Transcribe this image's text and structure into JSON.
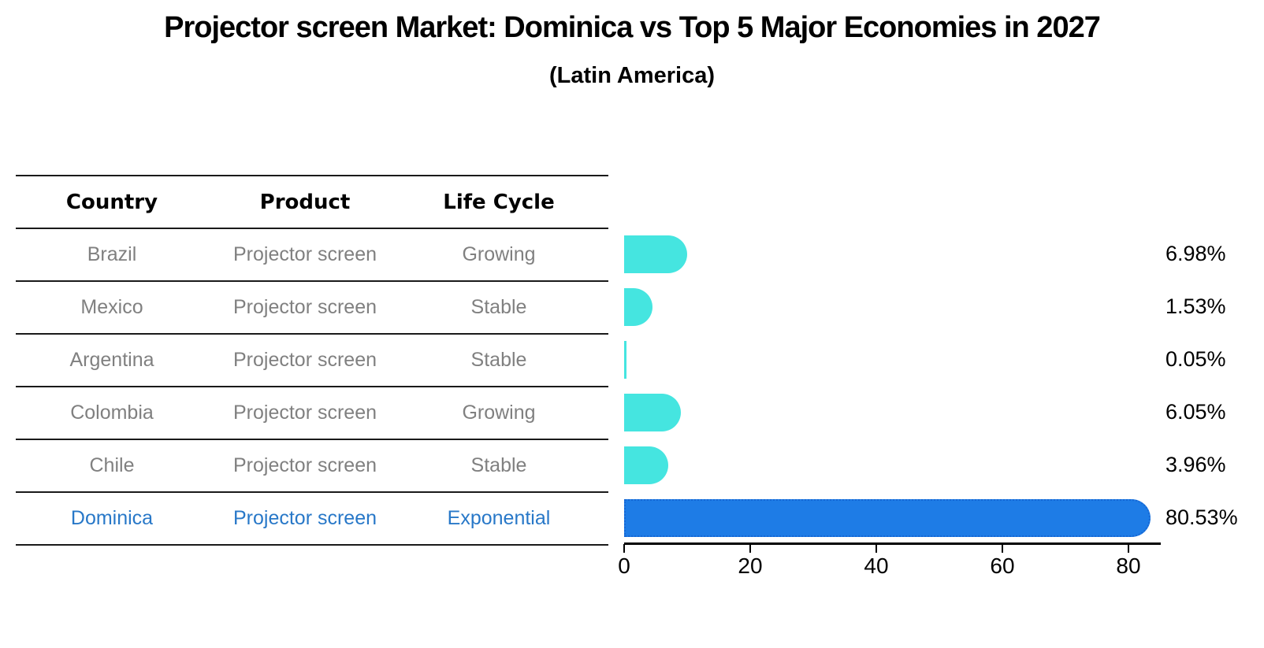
{
  "title": "Projector screen Market: Dominica vs Top 5 Major Economies in 2027",
  "subtitle": "(Latin America)",
  "table": {
    "headers": [
      "Country",
      "Product",
      "Life Cycle"
    ],
    "rows": [
      {
        "country": "Brazil",
        "product": "Projector screen",
        "life_cycle": "Growing",
        "highlight": false
      },
      {
        "country": "Mexico",
        "product": "Projector screen",
        "life_cycle": "Stable",
        "highlight": false
      },
      {
        "country": "Argentina",
        "product": "Projector screen",
        "life_cycle": "Stable",
        "highlight": false
      },
      {
        "country": "Colombia",
        "product": "Projector screen",
        "life_cycle": "Growing",
        "highlight": false
      },
      {
        "country": "Chile",
        "product": "Projector screen",
        "life_cycle": "Stable",
        "highlight": false
      },
      {
        "country": "Dominica",
        "product": "Projector screen",
        "life_cycle": "Exponential",
        "highlight": true
      }
    ]
  },
  "chart_data": {
    "type": "bar",
    "orientation": "horizontal",
    "title": "Projector screen Market: Dominica vs Top 5 Major Economies in 2027",
    "subtitle": "(Latin America)",
    "categories": [
      "Brazil",
      "Mexico",
      "Argentina",
      "Colombia",
      "Chile",
      "Dominica"
    ],
    "values": [
      6.98,
      1.53,
      0.05,
      6.05,
      3.96,
      80.53
    ],
    "value_labels": [
      "6.98%",
      "1.53%",
      "0.05%",
      "6.05%",
      "3.96%",
      "80.53%"
    ],
    "x_ticks": [
      0,
      20,
      40,
      60,
      80
    ],
    "xlim": [
      0,
      85
    ],
    "grid": false,
    "legend": false,
    "highlight_index": 5
  },
  "colors": {
    "bar_cyan": "#45E5E0",
    "bar_blue": "#1E7CE6",
    "bar_blue_border": "#1667D4",
    "highlight_text": "#2878C8",
    "muted_text": "#808080",
    "line": "#1A1A1A"
  }
}
